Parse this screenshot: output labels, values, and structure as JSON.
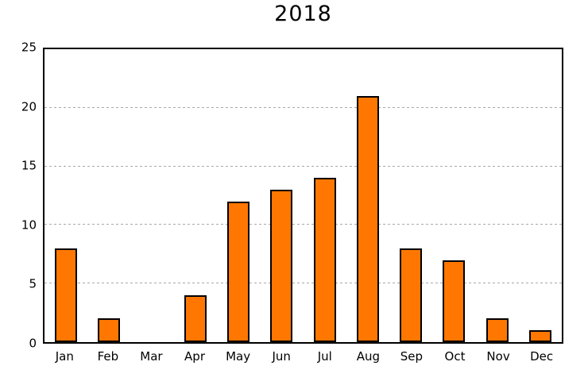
{
  "chart_data": {
    "type": "bar",
    "title": "2018",
    "categories": [
      "Jan",
      "Feb",
      "Mar",
      "Apr",
      "May",
      "Jun",
      "Jul",
      "Aug",
      "Sep",
      "Oct",
      "Nov",
      "Dec"
    ],
    "values": [
      8,
      2,
      0,
      4,
      12,
      13,
      14,
      21,
      8,
      7,
      2,
      1
    ],
    "xlabel": "",
    "ylabel": "",
    "ylim": [
      0,
      25
    ],
    "yticks": [
      0,
      5,
      10,
      15,
      20,
      25
    ],
    "grid": "horizontal-dotted",
    "legend": "none",
    "bar_color": "#ff7700",
    "bar_border_color": "#000000",
    "grid_color": "#a8a8a8",
    "background": "#ffffff"
  }
}
